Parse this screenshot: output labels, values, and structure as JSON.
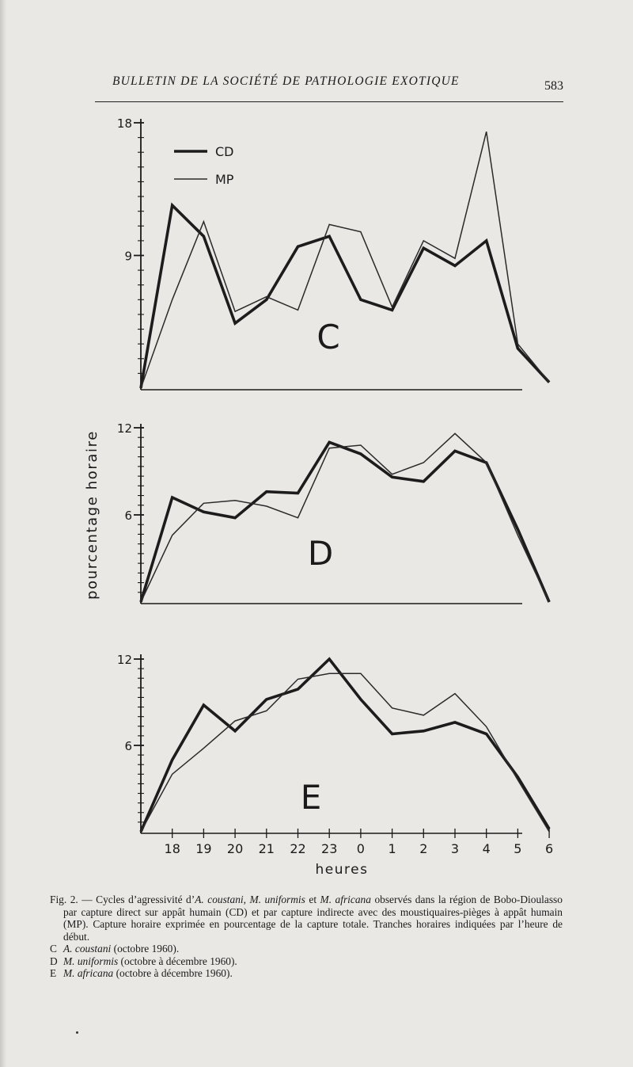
{
  "page": {
    "running_title": "BULLETIN DE LA SOCIÉTÉ DE PATHOLOGIE EXOTIQUE",
    "page_number": "583"
  },
  "caption": {
    "label": "Fig. 2.",
    "text_1": " — Cycles d’agressivité d’",
    "species_1": "A. coustani",
    "sep_1": ", ",
    "species_2": "M. uniformis",
    "sep_2": " et ",
    "species_3": "M. africana",
    "text_2": " observés dans la région de Bobo-Dioulasso par capture direct sur appât humain (CD) et par capture indirecte avec des moustiquaires-pièges à appât humain (MP). Capture horaire exprimée en pourcentage de la capture totale. Tranches horaires indiquées par l’heure de début.",
    "items": [
      {
        "letter": "C",
        "species": "A. coustani",
        "period": " (octobre 1960)."
      },
      {
        "letter": "D",
        "species": "M. uniformis",
        "period": " (octobre à décembre 1960)."
      },
      {
        "letter": "E",
        "species": "M. africana",
        "period": " (octobre à décembre 1960)."
      }
    ]
  },
  "chart_data": [
    {
      "type": "line",
      "panel_label": "C",
      "x": [
        "17",
        "18",
        "19",
        "20",
        "21",
        "22",
        "23",
        "0",
        "1",
        "2",
        "3",
        "4",
        "5",
        "6"
      ],
      "ylim": [
        0,
        18
      ],
      "ytick_labels": [
        "18",
        "9"
      ],
      "ytick_values": [
        18,
        9
      ],
      "legend": {
        "position": "top-left",
        "entries": [
          "CD",
          "MP"
        ]
      },
      "series": [
        {
          "name": "CD",
          "values": [
            0,
            12.4,
            10.3,
            4.4,
            6.0,
            9.6,
            10.3,
            6.0,
            5.3,
            9.5,
            8.3,
            10.0,
            2.7,
            0.4
          ]
        },
        {
          "name": "MP",
          "values": [
            0,
            6.0,
            11.3,
            5.2,
            6.2,
            5.3,
            11.1,
            10.6,
            5.5,
            10.0,
            8.8,
            17.4,
            3.0,
            0.4
          ]
        }
      ]
    },
    {
      "type": "line",
      "panel_label": "D",
      "x": [
        "17",
        "18",
        "19",
        "20",
        "21",
        "22",
        "23",
        "0",
        "1",
        "2",
        "3",
        "4",
        "5",
        "6"
      ],
      "ylim": [
        0,
        12
      ],
      "ylabel": "pourcentage horaire",
      "ytick_labels": [
        "12",
        "6"
      ],
      "ytick_values": [
        12,
        6
      ],
      "series": [
        {
          "name": "CD",
          "values": [
            0,
            7.2,
            6.2,
            5.8,
            7.6,
            7.5,
            11.0,
            10.2,
            8.6,
            8.3,
            10.4,
            9.6,
            5.0,
            0
          ]
        },
        {
          "name": "MP",
          "values": [
            0,
            4.6,
            6.8,
            7.0,
            6.6,
            5.8,
            10.6,
            10.8,
            8.8,
            9.6,
            11.6,
            9.6,
            4.6,
            0
          ]
        }
      ]
    },
    {
      "type": "line",
      "panel_label": "E",
      "x": [
        "17",
        "18",
        "19",
        "20",
        "21",
        "22",
        "23",
        "0",
        "1",
        "2",
        "3",
        "4",
        "5",
        "6"
      ],
      "xlabel": "heures",
      "xtick_labels": [
        "18",
        "19",
        "20",
        "21",
        "22",
        "23",
        "0",
        "1",
        "2",
        "3",
        "4",
        "5",
        "6"
      ],
      "ylim": [
        0,
        12
      ],
      "ytick_labels": [
        "12",
        "6"
      ],
      "ytick_values": [
        12,
        6
      ],
      "series": [
        {
          "name": "CD",
          "values": [
            0,
            5.0,
            8.8,
            7.0,
            9.2,
            9.9,
            12.0,
            9.2,
            6.8,
            7.0,
            7.6,
            6.8,
            3.8,
            0.2
          ]
        },
        {
          "name": "MP",
          "values": [
            0,
            4.0,
            5.8,
            7.7,
            8.4,
            10.6,
            11.0,
            11.0,
            8.6,
            8.1,
            9.6,
            7.3,
            3.6,
            0
          ]
        }
      ]
    }
  ]
}
